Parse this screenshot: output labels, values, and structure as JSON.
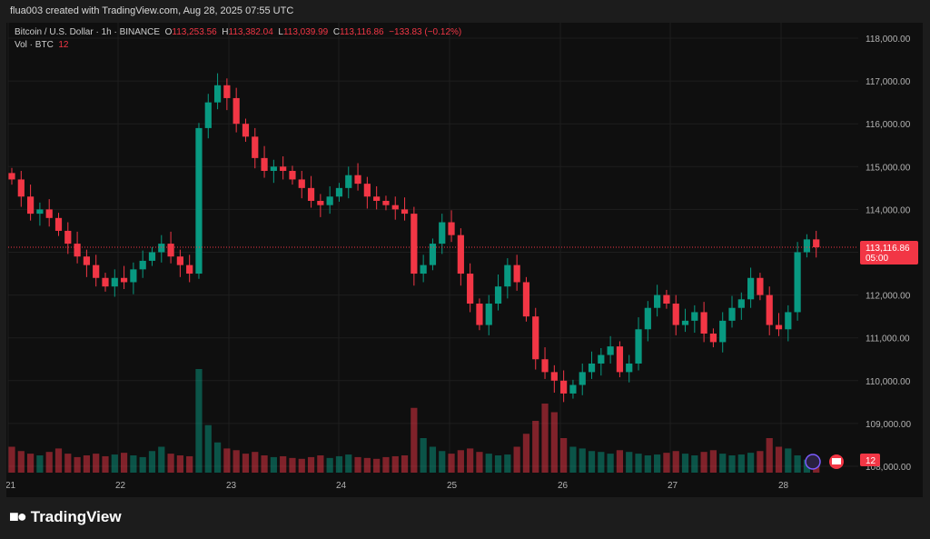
{
  "header": {
    "created_text": "flua003 created with TradingView.com, Aug 28, 2025 07:55 UTC"
  },
  "legend": {
    "symbol": "Bitcoin / U.S. Dollar · 1h · BINANCE",
    "open_label": "O",
    "open": "113,253.56",
    "high_label": "H",
    "high": "113,382.04",
    "low_label": "L",
    "low": "113,039.99",
    "close_label": "C",
    "close": "113,116.86",
    "change": "−133.83 (−0.12%)",
    "vol_label": "Vol · BTC",
    "vol_value": "12"
  },
  "price_tag": {
    "price": "113,116.86",
    "countdown": "05:00"
  },
  "volume_tag": "12",
  "brand": {
    "name": "TradingView"
  },
  "colors": {
    "up": "#089981",
    "down": "#f23645",
    "background": "#0f0f0f"
  },
  "chart_data": {
    "type": "candlestick",
    "y_ticks": [
      "118,000.00",
      "117,000.00",
      "116,000.00",
      "115,000.00",
      "114,000.00",
      "113,000.00",
      "112,000.00",
      "111,000.00",
      "110,000.00",
      "109,000.00",
      "108,000.00"
    ],
    "ylim": [
      108000,
      118000
    ],
    "x_ticks": [
      "21",
      "22",
      "23",
      "24",
      "25",
      "26",
      "27",
      "28"
    ],
    "closes": [
      114700,
      114300,
      113900,
      114000,
      113800,
      113500,
      113200,
      112900,
      112700,
      112400,
      112200,
      112400,
      112300,
      112600,
      112800,
      113000,
      113200,
      112900,
      112700,
      112500,
      115900,
      116500,
      116900,
      116600,
      116000,
      115700,
      115200,
      114900,
      115000,
      114900,
      114700,
      114500,
      114200,
      114100,
      114300,
      114500,
      114800,
      114600,
      114300,
      114200,
      114100,
      114000,
      113900,
      112500,
      112700,
      113200,
      113700,
      113400,
      112500,
      111800,
      111300,
      111800,
      112200,
      112700,
      112300,
      111500,
      110500,
      110200,
      110000,
      109700,
      109900,
      110200,
      110400,
      110600,
      110800,
      110200,
      110400,
      111200,
      111700,
      112000,
      111800,
      111300,
      111400,
      111600,
      111100,
      110900,
      111400,
      111700,
      111900,
      112400,
      112000,
      111300,
      111200,
      111600,
      113000,
      113300,
      113117
    ],
    "volumes": [
      30,
      25,
      22,
      20,
      24,
      28,
      22,
      18,
      20,
      22,
      19,
      21,
      23,
      20,
      18,
      25,
      30,
      22,
      20,
      19,
      120,
      55,
      35,
      28,
      26,
      22,
      24,
      20,
      18,
      19,
      17,
      16,
      18,
      20,
      17,
      19,
      21,
      18,
      17,
      16,
      18,
      19,
      20,
      75,
      40,
      30,
      25,
      22,
      26,
      28,
      24,
      22,
      20,
      21,
      30,
      45,
      60,
      80,
      70,
      40,
      30,
      28,
      25,
      24,
      22,
      26,
      24,
      22,
      20,
      21,
      23,
      25,
      22,
      20,
      24,
      26,
      22,
      20,
      21,
      23,
      25,
      40,
      30,
      28,
      20,
      15,
      12
    ]
  }
}
